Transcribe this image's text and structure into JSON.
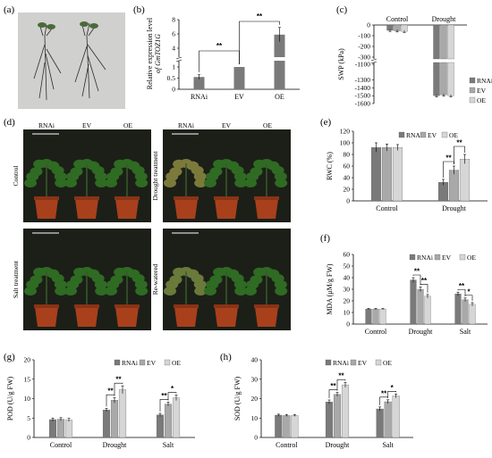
{
  "panels": {
    "a": {
      "label": "(a)"
    },
    "b": {
      "label": "(b)"
    },
    "c": {
      "label": "(c)"
    },
    "d": {
      "label": "(d)"
    },
    "e": {
      "label": "(e)"
    },
    "f": {
      "label": "(f)"
    },
    "g": {
      "label": "(g)"
    },
    "h": {
      "label": "(h)"
    }
  },
  "photos": {
    "d_top_cols": [
      "RNAi",
      "EV",
      "OE"
    ],
    "d_top_left_side": "Control",
    "d_top_right_side": "Drought treatment",
    "d_bottom_left_side": "Salt treatment",
    "d_bottom_right_side": "Re-watered"
  },
  "colors": {
    "RNAi": "#7a7a7a",
    "EV": "#a9a9a9",
    "OE": "#d6d6d6",
    "plant": "#2f6b23",
    "pot": "#a8401c",
    "photo_bg": "#1c1f18"
  },
  "chart_data": [
    {
      "panel": "b",
      "type": "bar",
      "categories": [
        "RNAi",
        "EV",
        "OE"
      ],
      "values": [
        0.55,
        1.0,
        5.9
      ],
      "errors": [
        0.1,
        0.0,
        1.0
      ],
      "ylabel_line1": "Relative expression level",
      "ylabel_line2": "of GmTOZ1G",
      "yticks_lower": [
        "0",
        "0.5",
        "1"
      ],
      "yticks_upper": [
        "4",
        "6",
        "8"
      ],
      "axis_break": true,
      "significance": [
        "**",
        "**"
      ]
    },
    {
      "panel": "c",
      "type": "bar",
      "categories": [
        "Control",
        "Drought"
      ],
      "series": [
        {
          "name": "RNAi",
          "values": [
            -50,
            -1500
          ],
          "errors": [
            10,
            15
          ]
        },
        {
          "name": "EV",
          "values": [
            -55,
            -1490
          ],
          "errors": [
            10,
            15
          ]
        },
        {
          "name": "OE",
          "values": [
            -60,
            -1500
          ],
          "errors": [
            10,
            15
          ]
        }
      ],
      "ylabel": "SWP (kPa)",
      "yticks": [
        "0",
        "-100",
        "-200",
        "-300",
        "-1100",
        "-1300",
        "-1400",
        "-1500",
        "-1600"
      ],
      "axis_break": true,
      "legend": "right"
    },
    {
      "panel": "e",
      "type": "bar",
      "categories": [
        "Control",
        "Drought"
      ],
      "series": [
        {
          "name": "RNAi",
          "values": [
            92,
            32
          ],
          "errors": [
            8,
            5
          ]
        },
        {
          "name": "EV",
          "values": [
            92,
            53
          ],
          "errors": [
            6,
            7
          ]
        },
        {
          "name": "OE",
          "values": [
            92,
            72
          ],
          "errors": [
            5,
            8
          ]
        }
      ],
      "ylabel": "RWC (%)",
      "ylim": [
        0,
        120
      ],
      "yticks": [
        "0",
        "20",
        "40",
        "60",
        "80",
        "100",
        "120"
      ],
      "significance": [
        "**",
        "**"
      ],
      "legend": "top-right"
    },
    {
      "panel": "f",
      "type": "bar",
      "categories": [
        "Control",
        "Drought",
        "Salt"
      ],
      "series": [
        {
          "name": "RNAi",
          "values": [
            13,
            38,
            26
          ],
          "errors": [
            0.5,
            2,
            1.5
          ]
        },
        {
          "name": "EV",
          "values": [
            13,
            30,
            21
          ],
          "errors": [
            0.5,
            2,
            1.5
          ]
        },
        {
          "name": "OE",
          "values": [
            13,
            24,
            17
          ],
          "errors": [
            0.5,
            1.5,
            1.5
          ]
        }
      ],
      "ylabel": "MDA (μM/g FW)",
      "ylim": [
        0,
        60
      ],
      "yticks": [
        "0",
        "10",
        "20",
        "30",
        "40",
        "50",
        "60"
      ],
      "significance": [
        "**",
        "**",
        "**",
        "*"
      ],
      "legend": "top-right"
    },
    {
      "panel": "g",
      "type": "bar",
      "categories": [
        "Control",
        "Drought",
        "Salt"
      ],
      "series": [
        {
          "name": "RNAi",
          "values": [
            4.6,
            7.1,
            5.8
          ],
          "errors": [
            0.4,
            0.4,
            0.4
          ]
        },
        {
          "name": "EV",
          "values": [
            4.7,
            9.6,
            8.6
          ],
          "errors": [
            0.4,
            0.7,
            0.5
          ]
        },
        {
          "name": "OE",
          "values": [
            4.5,
            12.3,
            10.2
          ],
          "errors": [
            0.4,
            1.0,
            0.7
          ]
        }
      ],
      "ylabel": "POD (U/g FW)",
      "ylim": [
        0,
        20
      ],
      "yticks": [
        "0",
        "5",
        "10",
        "15",
        "20"
      ],
      "significance": [
        "**",
        "**",
        "**",
        "*"
      ],
      "legend": "top-right"
    },
    {
      "panel": "h",
      "type": "bar",
      "categories": [
        "Control",
        "Drought",
        "Salt"
      ],
      "series": [
        {
          "name": "RNAi",
          "values": [
            11.5,
            18.3,
            14.7
          ],
          "errors": [
            0.5,
            1.0,
            1.0
          ]
        },
        {
          "name": "EV",
          "values": [
            11.3,
            22.2,
            18.4
          ],
          "errors": [
            0.5,
            1.0,
            1.0
          ]
        },
        {
          "name": "OE",
          "values": [
            11.3,
            27.1,
            21.4
          ],
          "errors": [
            0.5,
            1.3,
            1.0
          ]
        }
      ],
      "ylabel": "SOD (U/g FW)",
      "ylim": [
        0,
        40
      ],
      "yticks": [
        "0",
        "10",
        "20",
        "30",
        "40"
      ],
      "significance": [
        "**",
        "**",
        "**",
        "*"
      ],
      "legend": "top-right"
    }
  ]
}
